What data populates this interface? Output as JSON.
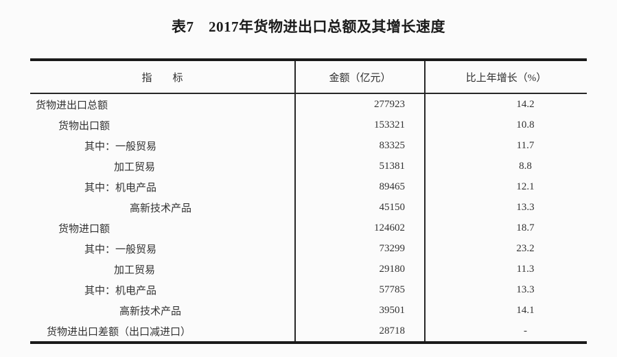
{
  "page": {
    "background": "#fbfbfb",
    "line_color": "#1a1a1a",
    "text_color": "#323232"
  },
  "title": "表7　2017年货物进出口总额及其增长速度",
  "table": {
    "headers": {
      "indicator": "指　　标",
      "amount": "金额（亿元）",
      "growth": "比上年增长（%）"
    },
    "rows": [
      {
        "label": "货物进出口总额",
        "amount": "277923",
        "growth": "14.2"
      },
      {
        "label": "货物出口额",
        "amount": "153321",
        "growth": "10.8"
      },
      {
        "label": "其中：一般贸易",
        "amount": "83325",
        "growth": "11.7"
      },
      {
        "label": "加工贸易",
        "amount": "51381",
        "growth": "8.8"
      },
      {
        "label": "其中：机电产品",
        "amount": "89465",
        "growth": "12.1"
      },
      {
        "label": "高新技术产品",
        "amount": "45150",
        "growth": "13.3"
      },
      {
        "label": "货物进口额",
        "amount": "124602",
        "growth": "18.7"
      },
      {
        "label": "其中：一般贸易",
        "amount": "73299",
        "growth": "23.2"
      },
      {
        "label": "加工贸易",
        "amount": "29180",
        "growth": "11.3"
      },
      {
        "label": "其中：机电产品",
        "amount": "57785",
        "growth": "13.3"
      },
      {
        "label": "高新技术产品",
        "amount": "39501",
        "growth": "14.1"
      },
      {
        "label": "货物进出口差额（出口减进口）",
        "amount": "28718",
        "growth": "-"
      }
    ]
  },
  "chart_data": {
    "type": "table",
    "title": "表7　2017年货物进出口总额及其增长速度",
    "columns": [
      "指标",
      "金额（亿元）",
      "比上年增长（%）"
    ],
    "rows": [
      {
        "indicator": "货物进出口总额",
        "amount": 277923,
        "growth_pct": 14.2,
        "level": 0
      },
      {
        "indicator": "货物出口额",
        "amount": 153321,
        "growth_pct": 10.8,
        "level": 1
      },
      {
        "indicator": "其中：一般贸易",
        "amount": 83325,
        "growth_pct": 11.7,
        "level": 2
      },
      {
        "indicator": "加工贸易",
        "amount": 51381,
        "growth_pct": 8.8,
        "level": 3
      },
      {
        "indicator": "其中：机电产品",
        "amount": 89465,
        "growth_pct": 12.1,
        "level": 2
      },
      {
        "indicator": "高新技术产品",
        "amount": 45150,
        "growth_pct": 13.3,
        "level": 3
      },
      {
        "indicator": "货物进口额",
        "amount": 124602,
        "growth_pct": 18.7,
        "level": 1
      },
      {
        "indicator": "其中：一般贸易",
        "amount": 73299,
        "growth_pct": 23.2,
        "level": 2
      },
      {
        "indicator": "加工贸易",
        "amount": 29180,
        "growth_pct": 11.3,
        "level": 3
      },
      {
        "indicator": "其中：机电产品",
        "amount": 57785,
        "growth_pct": 13.3,
        "level": 2
      },
      {
        "indicator": "高新技术产品",
        "amount": 39501,
        "growth_pct": 14.1,
        "level": 3
      },
      {
        "indicator": "货物进出口差额（出口减进口）",
        "amount": 28718,
        "growth_pct": null,
        "level": 0
      }
    ]
  }
}
